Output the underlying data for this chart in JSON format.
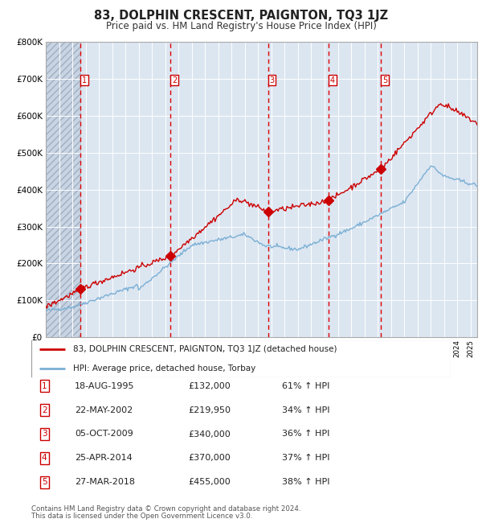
{
  "title": "83, DOLPHIN CRESCENT, PAIGNTON, TQ3 1JZ",
  "subtitle": "Price paid vs. HM Land Registry's House Price Index (HPI)",
  "legend_line1": "83, DOLPHIN CRESCENT, PAIGNTON, TQ3 1JZ (detached house)",
  "legend_line2": "HPI: Average price, detached house, Torbay",
  "footer1": "Contains HM Land Registry data © Crown copyright and database right 2024.",
  "footer2": "This data is licensed under the Open Government Licence v3.0.",
  "sales": [
    {
      "num": 1,
      "date": "18-AUG-1995",
      "price": 132000,
      "pct": "61%",
      "year": 1995.63
    },
    {
      "num": 2,
      "date": "22-MAY-2002",
      "price": 219950,
      "pct": "34%",
      "year": 2002.39
    },
    {
      "num": 3,
      "date": "05-OCT-2009",
      "price": 340000,
      "pct": "36%",
      "year": 2009.76
    },
    {
      "num": 4,
      "date": "25-APR-2014",
      "price": 370000,
      "pct": "37%",
      "year": 2014.32
    },
    {
      "num": 5,
      "date": "27-MAR-2018",
      "price": 455000,
      "pct": "38%",
      "year": 2018.24
    }
  ],
  "hpi_color": "#7bafd4",
  "price_color": "#cc0000",
  "marker_color": "#cc0000",
  "background_color": "#dce6f1",
  "grid_color": "#ffffff",
  "dashed_line_color": "#dd0000",
  "label_box_color": "#cc0000",
  "ylim": [
    0,
    800000
  ],
  "yticks": [
    0,
    100000,
    200000,
    300000,
    400000,
    500000,
    600000,
    700000,
    800000
  ],
  "xmin": 1993.0,
  "xmax": 2025.5
}
